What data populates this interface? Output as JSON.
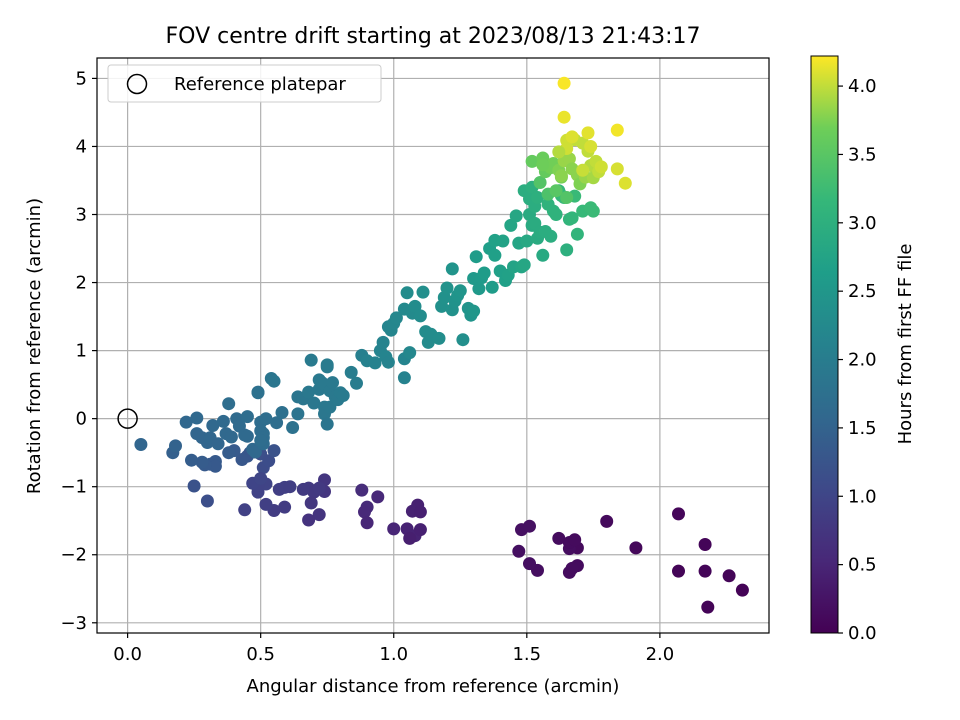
{
  "chart_data": {
    "type": "scatter",
    "title": "FOV centre drift starting at 2023/08/13 21:43:17",
    "xlabel": "Angular distance from reference (arcmin)",
    "ylabel": "Rotation from reference (arcmin)",
    "xlim": [
      -0.115,
      2.41
    ],
    "ylim": [
      -3.15,
      5.3
    ],
    "xticks": [
      0.0,
      0.5,
      1.0,
      1.5,
      2.0
    ],
    "xtick_labels": [
      "0.0",
      "0.5",
      "1.0",
      "1.5",
      "2.0"
    ],
    "yticks": [
      -3,
      -2,
      -1,
      0,
      1,
      2,
      3,
      4,
      5
    ],
    "ytick_labels": [
      "−3",
      "−2",
      "−1",
      "0",
      "1",
      "2",
      "3",
      "4",
      "5"
    ],
    "grid": true,
    "legend": {
      "placement": "top-left",
      "entries": [
        "Reference platepar"
      ]
    },
    "reference_marker": {
      "x": 0.0,
      "y": 0.0,
      "label": "Reference platepar"
    },
    "colormap": "viridis",
    "colorbar": {
      "label": "Hours from first FF file",
      "range": [
        0.0,
        4.22
      ],
      "ticks": [
        0.0,
        0.5,
        1.0,
        1.5,
        2.0,
        2.5,
        3.0,
        3.5,
        4.0
      ],
      "tick_labels": [
        "0.0",
        "0.5",
        "1.0",
        "1.5",
        "2.0",
        "2.5",
        "3.0",
        "3.5",
        "4.0"
      ]
    },
    "point_fields": [
      "x",
      "y",
      "hours"
    ],
    "points": [
      [
        2.07,
        -2.24,
        0.05
      ],
      [
        2.17,
        -2.24,
        0.06
      ],
      [
        2.18,
        -2.77,
        0.04
      ],
      [
        2.26,
        -2.31,
        0.05
      ],
      [
        2.31,
        -2.52,
        0.03
      ],
      [
        2.07,
        -1.4,
        0.07
      ],
      [
        2.17,
        -1.85,
        0.06
      ],
      [
        1.91,
        -1.9,
        0.09
      ],
      [
        1.8,
        -1.51,
        0.12
      ],
      [
        1.69,
        -1.9,
        0.12
      ],
      [
        1.69,
        -2.16,
        0.14
      ],
      [
        1.66,
        -2.26,
        0.15
      ],
      [
        1.62,
        -1.76,
        0.15
      ],
      [
        1.66,
        -1.91,
        0.16
      ],
      [
        1.54,
        -2.23,
        0.18
      ],
      [
        1.51,
        -2.13,
        0.19
      ],
      [
        1.47,
        -1.95,
        0.19
      ],
      [
        1.48,
        -1.63,
        0.2
      ],
      [
        1.51,
        -1.58,
        0.21
      ],
      [
        1.66,
        -1.82,
        0.14
      ],
      [
        1.68,
        -1.78,
        0.13
      ],
      [
        1.67,
        -2.2,
        0.15
      ],
      [
        1.05,
        -1.62,
        0.45
      ],
      [
        1.09,
        -1.27,
        0.43
      ],
      [
        1.07,
        -1.36,
        0.44
      ],
      [
        1.1,
        -1.37,
        0.42
      ],
      [
        1.08,
        -1.72,
        0.46
      ],
      [
        1.1,
        -1.63,
        0.42
      ],
      [
        1.06,
        -1.76,
        0.4
      ],
      [
        0.94,
        -1.15,
        0.55
      ],
      [
        0.88,
        -1.05,
        0.6
      ],
      [
        0.9,
        -1.3,
        0.57
      ],
      [
        0.89,
        -1.37,
        0.55
      ],
      [
        0.9,
        -1.53,
        0.52
      ],
      [
        1.0,
        -1.62,
        0.5
      ],
      [
        0.74,
        -0.9,
        0.75
      ],
      [
        0.74,
        -1.07,
        0.74
      ],
      [
        0.68,
        -1.02,
        0.8
      ],
      [
        0.7,
        -1.08,
        0.78
      ],
      [
        0.72,
        -1.02,
        0.8
      ],
      [
        0.66,
        -1.04,
        0.82
      ],
      [
        0.69,
        -1.24,
        0.76
      ],
      [
        0.72,
        -1.41,
        0.72
      ],
      [
        0.68,
        -1.49,
        0.7
      ],
      [
        0.57,
        -1.04,
        0.9
      ],
      [
        0.59,
        -1.01,
        0.9
      ],
      [
        0.61,
        -1.0,
        0.88
      ],
      [
        0.59,
        -1.3,
        0.85
      ],
      [
        0.55,
        -1.35,
        0.85
      ],
      [
        0.52,
        -1.26,
        0.9
      ],
      [
        0.49,
        -1.08,
        0.95
      ],
      [
        0.52,
        -0.96,
        0.97
      ],
      [
        0.49,
        -0.98,
        0.96
      ],
      [
        0.47,
        -0.95,
        0.98
      ],
      [
        0.44,
        -1.34,
        0.92
      ],
      [
        0.51,
        -0.72,
        1.1
      ],
      [
        0.5,
        -0.52,
        1.15
      ],
      [
        0.53,
        -0.62,
        1.12
      ],
      [
        0.5,
        -0.88,
        1.0
      ],
      [
        0.55,
        -0.47,
        1.2
      ],
      [
        0.46,
        -0.5,
        1.3
      ],
      [
        0.45,
        -0.55,
        1.28
      ],
      [
        0.43,
        -0.6,
        1.3
      ],
      [
        0.4,
        -0.47,
        1.35
      ],
      [
        0.38,
        -0.5,
        1.38
      ],
      [
        0.33,
        -0.63,
        1.35
      ],
      [
        0.31,
        -0.67,
        1.33
      ],
      [
        0.33,
        -0.7,
        1.33
      ],
      [
        0.29,
        -0.68,
        1.35
      ],
      [
        0.28,
        -0.64,
        1.37
      ],
      [
        0.24,
        -0.61,
        1.4
      ],
      [
        0.3,
        -1.21,
        1.15
      ],
      [
        0.25,
        -0.99,
        1.2
      ],
      [
        0.17,
        -0.5,
        1.45
      ],
      [
        0.18,
        -0.4,
        1.5
      ],
      [
        0.05,
        -0.38,
        1.55
      ],
      [
        0.22,
        -0.05,
        1.58
      ],
      [
        0.26,
        -0.22,
        1.55
      ],
      [
        0.26,
        0.01,
        1.6
      ],
      [
        0.28,
        -0.28,
        1.55
      ],
      [
        0.3,
        -0.35,
        1.55
      ],
      [
        0.31,
        -0.28,
        1.57
      ],
      [
        0.32,
        -0.1,
        1.6
      ],
      [
        0.34,
        -0.37,
        1.55
      ],
      [
        0.36,
        -0.04,
        1.63
      ],
      [
        0.37,
        -0.22,
        1.6
      ],
      [
        0.39,
        -0.27,
        1.6
      ],
      [
        0.38,
        0.22,
        1.7
      ],
      [
        0.41,
        0.0,
        1.65
      ],
      [
        0.42,
        -0.11,
        1.65
      ],
      [
        0.44,
        -0.24,
        1.62
      ],
      [
        0.45,
        -0.26,
        1.63
      ],
      [
        0.45,
        0.03,
        1.68
      ],
      [
        0.47,
        -0.45,
        1.6
      ],
      [
        0.48,
        -0.49,
        1.6
      ],
      [
        0.49,
        0.39,
        1.75
      ],
      [
        0.49,
        0.38,
        1.76
      ],
      [
        0.5,
        -0.05,
        1.68
      ],
      [
        0.5,
        -0.18,
        1.68
      ],
      [
        0.51,
        -0.22,
        1.68
      ],
      [
        0.51,
        -0.28,
        1.68
      ],
      [
        0.51,
        -0.37,
        1.67
      ],
      [
        0.5,
        -0.32,
        1.68
      ],
      [
        0.52,
        0.0,
        1.7
      ],
      [
        0.54,
        0.59,
        1.85
      ],
      [
        0.55,
        0.55,
        1.86
      ],
      [
        0.56,
        -0.06,
        1.7
      ],
      [
        0.58,
        0.09,
        1.75
      ],
      [
        0.62,
        -0.13,
        1.78
      ],
      [
        0.64,
        0.07,
        1.82
      ],
      [
        0.64,
        0.32,
        1.85
      ],
      [
        0.66,
        0.29,
        1.87
      ],
      [
        0.68,
        0.39,
        1.9
      ],
      [
        0.69,
        0.86,
        1.95
      ],
      [
        0.7,
        0.23,
        1.88
      ],
      [
        0.72,
        0.43,
        1.9
      ],
      [
        0.72,
        0.57,
        1.92
      ],
      [
        0.73,
        0.53,
        1.93
      ],
      [
        0.74,
        0.5,
        1.93
      ],
      [
        0.74,
        0.17,
        1.9
      ],
      [
        0.75,
        0.79,
        1.98
      ],
      [
        0.75,
        0.76,
        1.97
      ],
      [
        0.74,
        0.07,
        1.88
      ],
      [
        0.75,
        -0.08,
        1.85
      ],
      [
        0.76,
        0.17,
        1.9
      ],
      [
        0.76,
        0.41,
        1.92
      ],
      [
        0.77,
        0.53,
        1.93
      ],
      [
        0.78,
        0.32,
        1.92
      ],
      [
        0.79,
        0.28,
        1.93
      ],
      [
        0.8,
        0.38,
        1.95
      ],
      [
        0.81,
        0.34,
        1.95
      ],
      [
        0.84,
        0.68,
        2.0
      ],
      [
        0.86,
        0.52,
        2.0
      ],
      [
        0.88,
        0.93,
        2.05
      ],
      [
        0.9,
        0.85,
        2.08
      ],
      [
        0.93,
        0.82,
        2.1
      ],
      [
        0.95,
        1.0,
        2.12
      ],
      [
        0.96,
        1.12,
        2.13
      ],
      [
        0.97,
        0.91,
        2.15
      ],
      [
        0.98,
        1.35,
        2.15
      ],
      [
        0.99,
        1.3,
        2.17
      ],
      [
        1.0,
        1.4,
        2.18
      ],
      [
        1.01,
        1.48,
        2.2
      ],
      [
        0.98,
        0.83,
        2.12
      ],
      [
        1.04,
        0.88,
        2.15
      ],
      [
        1.04,
        0.6,
        2.1
      ],
      [
        1.06,
        0.97,
        2.2
      ],
      [
        1.04,
        1.61,
        2.25
      ],
      [
        1.05,
        1.85,
        2.3
      ],
      [
        1.07,
        1.55,
        2.27
      ],
      [
        1.08,
        1.65,
        2.3
      ],
      [
        1.1,
        1.51,
        2.3
      ],
      [
        1.11,
        1.86,
        2.35
      ],
      [
        1.12,
        1.28,
        2.3
      ],
      [
        1.13,
        1.12,
        2.28
      ],
      [
        1.14,
        1.24,
        2.3
      ],
      [
        1.17,
        1.18,
        2.32
      ],
      [
        1.18,
        1.65,
        2.38
      ],
      [
        1.19,
        1.78,
        2.4
      ],
      [
        1.2,
        1.92,
        2.42
      ],
      [
        1.22,
        2.2,
        2.45
      ],
      [
        1.22,
        1.6,
        2.4
      ],
      [
        1.23,
        1.73,
        2.42
      ],
      [
        1.24,
        1.81,
        2.45
      ],
      [
        1.25,
        1.88,
        2.47
      ],
      [
        1.26,
        1.16,
        2.35
      ],
      [
        1.28,
        1.62,
        2.45
      ],
      [
        1.29,
        1.52,
        2.45
      ],
      [
        1.3,
        1.58,
        2.48
      ],
      [
        1.3,
        2.06,
        2.55
      ],
      [
        1.31,
        2.38,
        2.6
      ],
      [
        1.32,
        1.91,
        2.55
      ],
      [
        1.33,
        2.07,
        2.57
      ],
      [
        1.34,
        2.14,
        2.6
      ],
      [
        1.36,
        2.5,
        2.65
      ],
      [
        1.37,
        1.93,
        2.6
      ],
      [
        1.38,
        2.62,
        2.7
      ],
      [
        1.38,
        2.4,
        2.68
      ],
      [
        1.4,
        2.17,
        2.68
      ],
      [
        1.41,
        2.61,
        2.72
      ],
      [
        1.42,
        2.03,
        2.68
      ],
      [
        1.43,
        2.11,
        2.7
      ],
      [
        1.44,
        2.84,
        2.78
      ],
      [
        1.45,
        2.23,
        2.75
      ],
      [
        1.46,
        2.98,
        2.8
      ],
      [
        1.47,
        2.58,
        2.78
      ],
      [
        1.48,
        2.23,
        2.78
      ],
      [
        1.49,
        2.26,
        2.8
      ],
      [
        1.5,
        2.61,
        2.85
      ],
      [
        1.49,
        3.35,
        2.95
      ],
      [
        1.51,
        3.0,
        2.9
      ],
      [
        1.51,
        3.23,
        2.95
      ],
      [
        1.52,
        2.84,
        2.9
      ],
      [
        1.52,
        3.4,
        3.0
      ],
      [
        1.53,
        2.87,
        2.92
      ],
      [
        1.53,
        3.12,
        2.95
      ],
      [
        1.54,
        3.25,
        3.0
      ],
      [
        1.54,
        2.65,
        2.9
      ],
      [
        1.55,
        2.74,
        2.92
      ],
      [
        1.56,
        2.4,
        2.88
      ],
      [
        1.57,
        2.75,
        2.95
      ],
      [
        1.58,
        3.15,
        3.05
      ],
      [
        1.59,
        2.68,
        2.95
      ],
      [
        1.6,
        3.05,
        3.05
      ],
      [
        1.61,
        3.0,
        3.05
      ],
      [
        1.62,
        3.35,
        3.15
      ],
      [
        1.63,
        3.28,
        3.15
      ],
      [
        1.64,
        3.25,
        3.18
      ],
      [
        1.65,
        2.48,
        3.0
      ],
      [
        1.66,
        2.93,
        3.1
      ],
      [
        1.67,
        2.95,
        3.12
      ],
      [
        1.68,
        3.27,
        3.2
      ],
      [
        1.69,
        2.71,
        3.1
      ],
      [
        1.71,
        3.05,
        3.18
      ],
      [
        1.74,
        3.1,
        3.22
      ],
      [
        1.75,
        3.05,
        3.22
      ],
      [
        1.52,
        3.78,
        3.6
      ],
      [
        1.55,
        3.47,
        3.45
      ],
      [
        1.56,
        3.83,
        3.65
      ],
      [
        1.57,
        3.63,
        3.6
      ],
      [
        1.58,
        3.3,
        3.4
      ],
      [
        1.59,
        3.69,
        3.7
      ],
      [
        1.6,
        3.75,
        3.7
      ],
      [
        1.61,
        3.35,
        3.5
      ],
      [
        1.62,
        3.65,
        3.75
      ],
      [
        1.63,
        3.55,
        3.72
      ],
      [
        1.64,
        3.79,
        3.85
      ],
      [
        1.65,
        3.25,
        3.45
      ],
      [
        1.66,
        3.82,
        3.85
      ],
      [
        1.67,
        3.67,
        3.8
      ],
      [
        1.68,
        4.1,
        4.0
      ],
      [
        1.69,
        3.58,
        3.8
      ],
      [
        1.7,
        3.45,
        3.75
      ],
      [
        1.71,
        4.05,
        4.0
      ],
      [
        1.72,
        3.55,
        3.85
      ],
      [
        1.73,
        3.93,
        4.0
      ],
      [
        1.74,
        3.72,
        3.95
      ],
      [
        1.75,
        3.54,
        3.9
      ],
      [
        1.76,
        3.78,
        4.0
      ],
      [
        1.77,
        3.63,
        4.0
      ],
      [
        1.78,
        3.7,
        4.05
      ],
      [
        1.64,
        4.93,
        4.2
      ],
      [
        1.64,
        4.43,
        4.15
      ],
      [
        1.65,
        4.09,
        4.05
      ],
      [
        1.67,
        4.14,
        4.1
      ],
      [
        1.73,
        4.2,
        4.12
      ],
      [
        1.74,
        4.0,
        4.08
      ],
      [
        1.84,
        3.67,
        4.08
      ],
      [
        1.84,
        4.24,
        4.18
      ],
      [
        1.87,
        3.46,
        4.1
      ],
      [
        1.71,
        3.65,
        4.02
      ],
      [
        1.65,
        3.97,
        4.05
      ],
      [
        1.62,
        3.92,
        3.95
      ],
      [
        1.63,
        3.57,
        3.8
      ],
      [
        1.56,
        3.73,
        3.68
      ]
    ]
  }
}
